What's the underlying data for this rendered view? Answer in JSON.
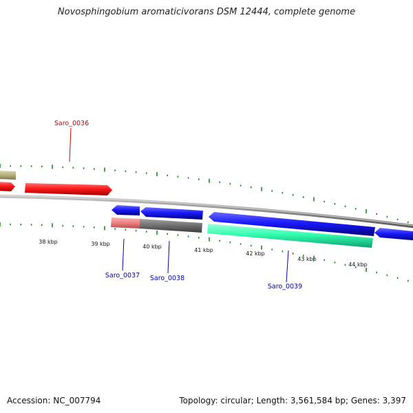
{
  "title": "Novosphingobium aromaticivorans DSM 12444, complete genome",
  "footer": {
    "accession": "Accession: NC_007794",
    "summary": "Topology: circular; Length: 3,561,584 bp; Genes: 3,397"
  },
  "colors": {
    "backbone": "#8c8c8c",
    "ticks": "#1f8a1f",
    "gene_red": "#ff1a1a",
    "gene_blue": "#1a1aff",
    "gene_olive": "#b3b07a",
    "gene_pink": "#f08080",
    "gene_gray": "#6e6e6e",
    "gene_teal": "#33ffb0",
    "label_red": "#cc0000",
    "label_blue": "#0000aa"
  },
  "scale": {
    "tick_labels": [
      "38 kbp",
      "39 kbp",
      "40 kbp",
      "41 kbp",
      "42 kbp",
      "43 kbp",
      "44 kbp"
    ]
  },
  "genes": [
    {
      "id": "gene-olive",
      "strand": "+",
      "color": "gene_olive"
    },
    {
      "id": "gene-red-left",
      "strand": "+",
      "color": "gene_red"
    },
    {
      "id": "Saro_0036",
      "strand": "+",
      "color": "gene_red"
    },
    {
      "id": "Saro_0037",
      "strand": "-",
      "color": "gene_blue"
    },
    {
      "id": "Saro_0038",
      "strand": "-",
      "color": "gene_blue"
    },
    {
      "id": "Saro_0039",
      "strand": "-",
      "color": "gene_blue"
    },
    {
      "id": "gene-blue-right",
      "strand": "-",
      "color": "gene_blue"
    }
  ],
  "gene_labels": [
    {
      "text": "Saro_0036",
      "color": "label_red"
    },
    {
      "text": "Saro_0037",
      "color": "label_blue"
    },
    {
      "text": "Saro_0038",
      "color": "label_blue"
    },
    {
      "text": "Saro_0039",
      "color": "label_blue"
    }
  ]
}
